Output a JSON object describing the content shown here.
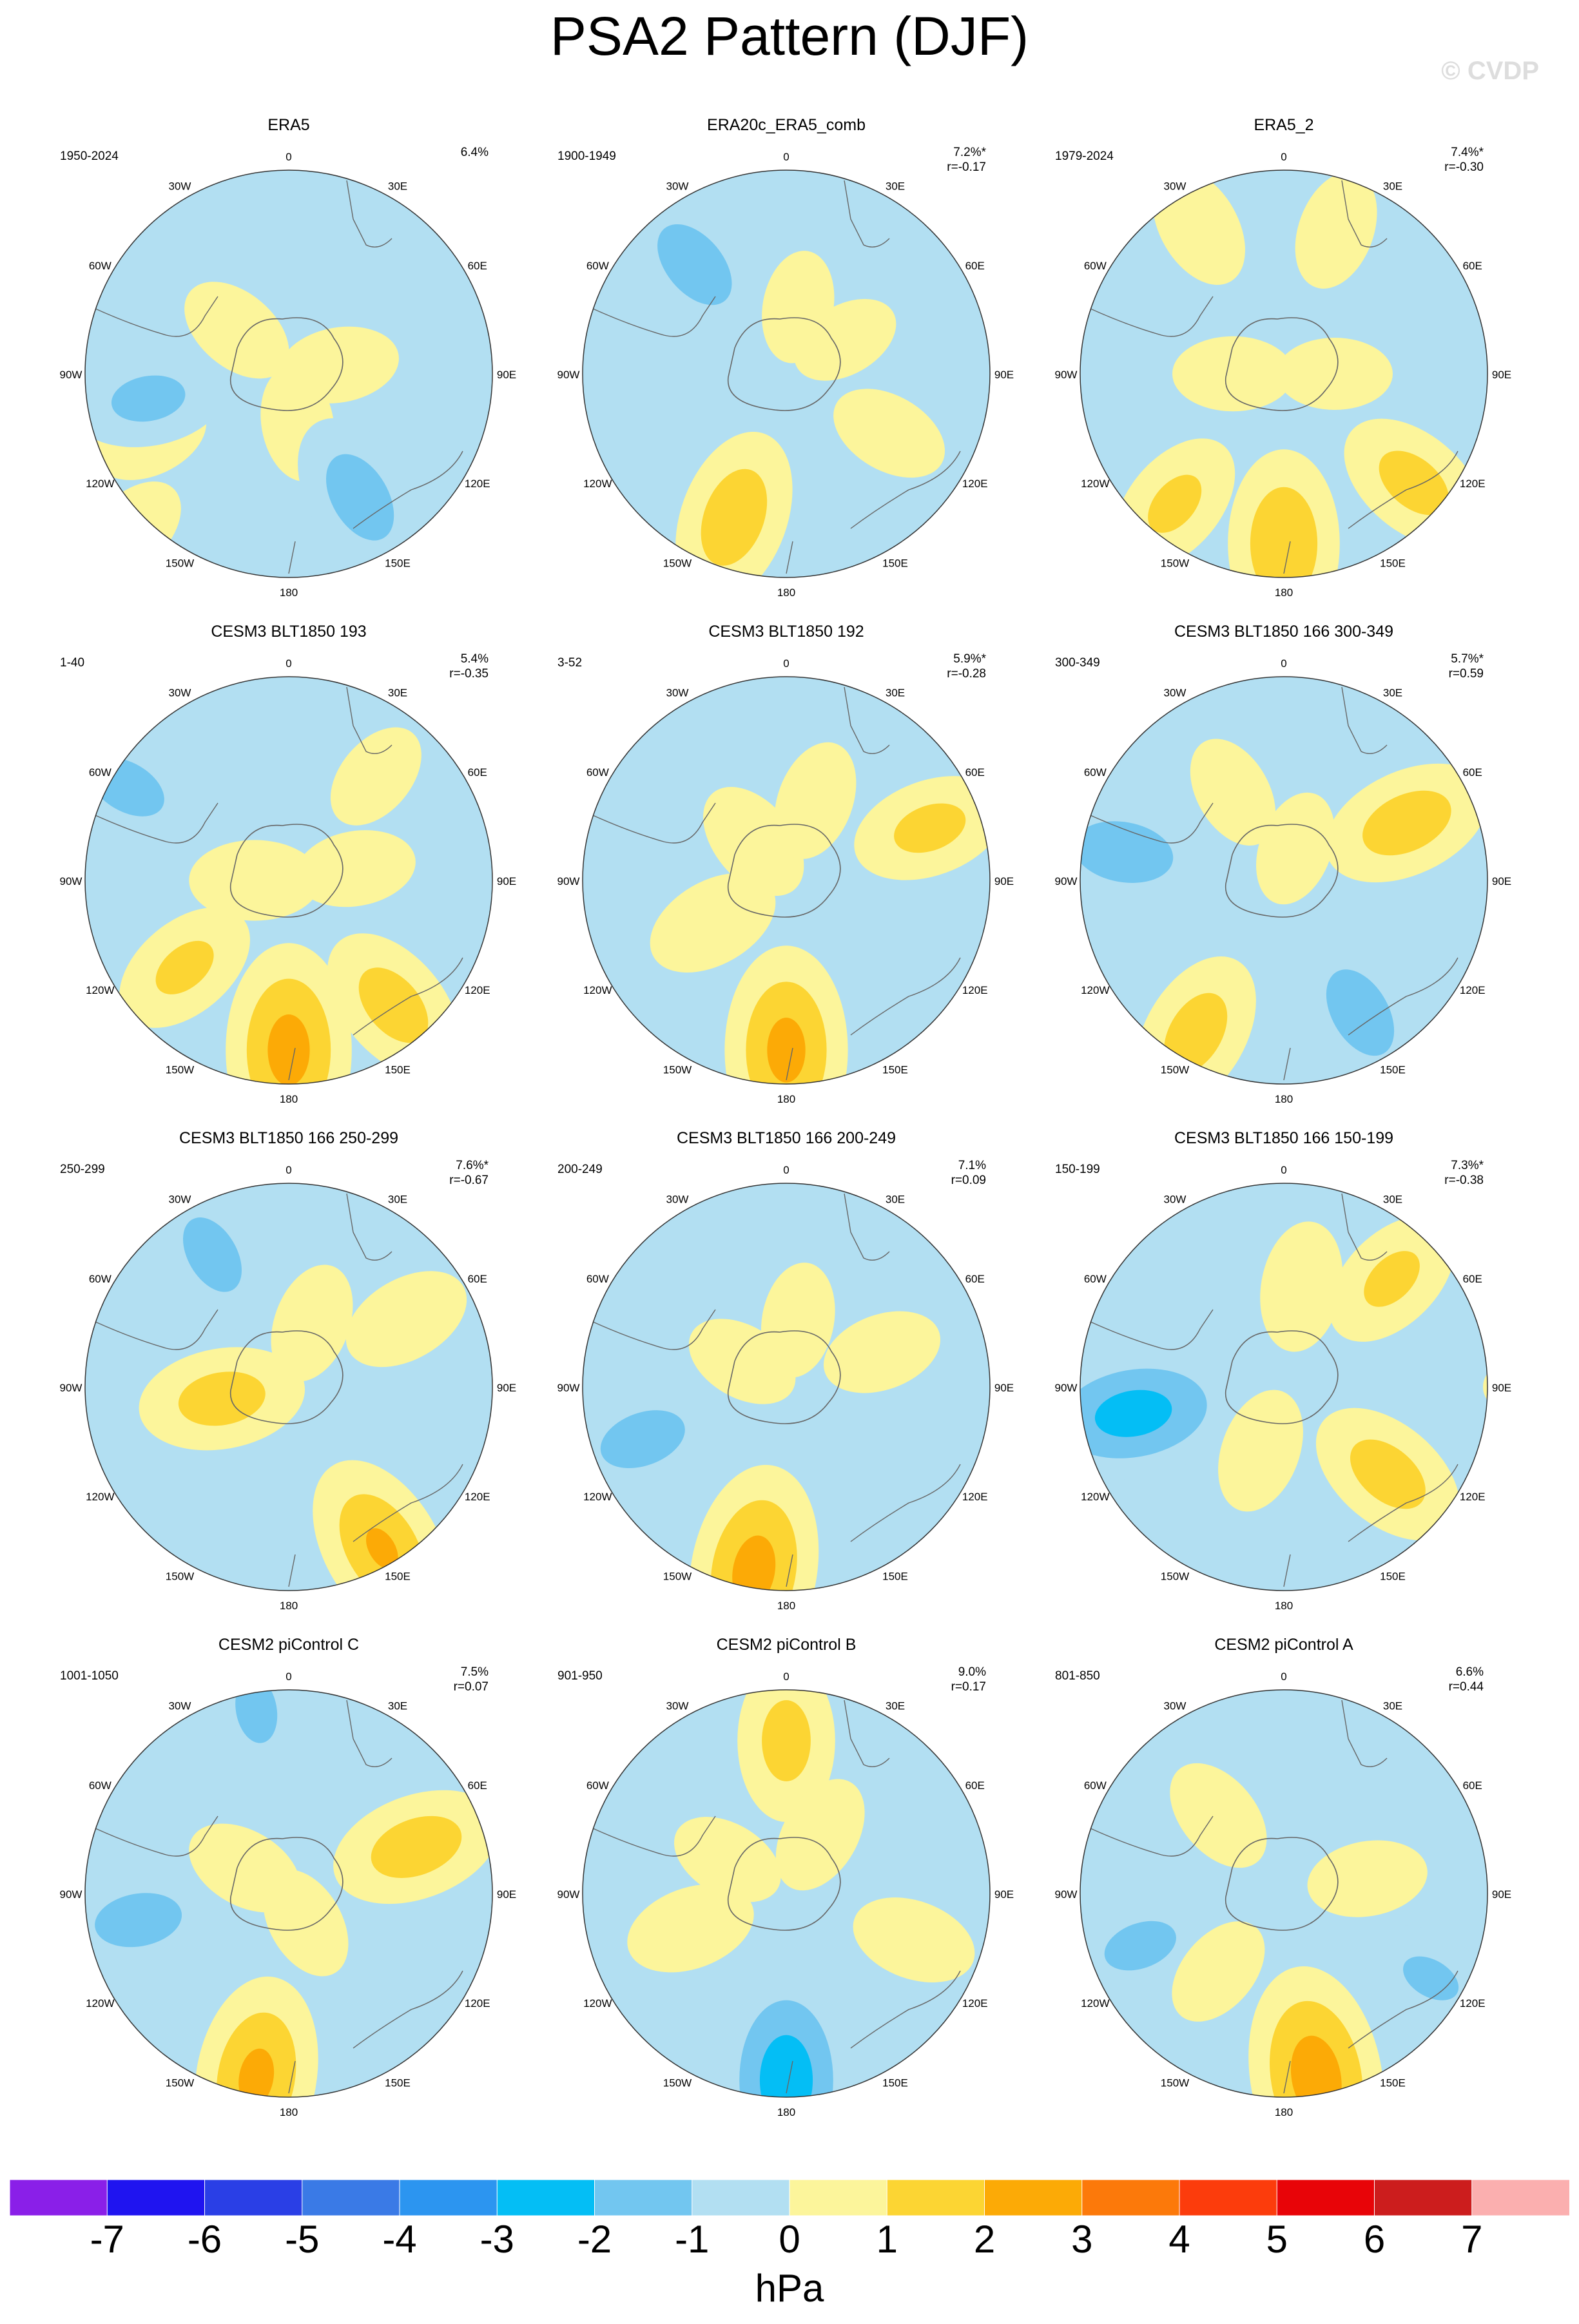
{
  "title": "PSA2 Pattern (DJF)",
  "watermark": "© CVDP",
  "units": "hPa",
  "chart_data": {
    "type": "heatmap",
    "projection": "south polar stereographic",
    "variable": "sea level pressure EOF pattern",
    "grid": true,
    "colorbar": {
      "levels": [
        -7,
        -6,
        -5,
        -4,
        -3,
        -2,
        -1,
        0,
        1,
        2,
        3,
        4,
        5,
        6,
        7
      ],
      "colors": [
        "#8a1fe8",
        "#1f14f0",
        "#2a3fe6",
        "#3a7ae6",
        "#2c95f0",
        "#04bef5",
        "#72c6f0",
        "#b2dff2",
        "#fcf59b",
        "#fcd533",
        "#fcaa06",
        "#fc790a",
        "#fc3c0c",
        "#e80408",
        "#cc1d1d",
        "#fbafaf"
      ]
    },
    "lon_labels": [
      "0",
      "30E",
      "60E",
      "90E",
      "120E",
      "150E",
      "180",
      "150W",
      "120W",
      "90W",
      "60W",
      "30W"
    ],
    "panels": [
      {
        "title": "ERA5",
        "years": "1950-2024",
        "pct": "6.4%",
        "r": "",
        "blobs": [
          {
            "lon": 310,
            "lat": 20,
            "val": 0.6
          },
          {
            "lon": 80,
            "lat": 15,
            "val": 0.6
          },
          {
            "lon": 170,
            "lat": 15,
            "val": 0.5
          },
          {
            "lon": 245,
            "lat": 45,
            "val": 0.55
          },
          {
            "lon": 150,
            "lat": 42,
            "val": -1.6
          },
          {
            "lon": 260,
            "lat": 42,
            "val": -1.3
          },
          {
            "lon": 225,
            "lat": 65,
            "val": 0.5
          }
        ]
      },
      {
        "title": "ERA20c_ERA5_comb",
        "years": "1900-1949",
        "pct": "7.2%*",
        "r": "r=-0.17",
        "blobs": [
          {
            "lon": 320,
            "lat": 42,
            "val": -1.6
          },
          {
            "lon": 200,
            "lat": 45,
            "val": 1.7
          },
          {
            "lon": 120,
            "lat": 35,
            "val": 0.6
          },
          {
            "lon": 60,
            "lat": 20,
            "val": 0.4
          },
          {
            "lon": 10,
            "lat": 20,
            "val": 0.45
          }
        ]
      },
      {
        "title": "ERA5_2",
        "years": "1979-2024",
        "pct": "7.4%*",
        "r": "r=-0.30",
        "blobs": [
          {
            "lon": 180,
            "lat": 50,
            "val": 1.9
          },
          {
            "lon": 130,
            "lat": 50,
            "val": 1.4
          },
          {
            "lon": 220,
            "lat": 50,
            "val": 1.2
          },
          {
            "lon": 330,
            "lat": 50,
            "val": 0.7
          },
          {
            "lon": 20,
            "lat": 45,
            "val": 0.6
          },
          {
            "lon": 90,
            "lat": 15,
            "val": 0.5
          },
          {
            "lon": 270,
            "lat": 15,
            "val": 0.6
          }
        ]
      },
      {
        "title": "CESM3 BLT1850 193",
        "years": "1-40",
        "pct": "5.4%",
        "r": "r=-0.35",
        "blobs": [
          {
            "lon": 180,
            "lat": 50,
            "val": 2.4
          },
          {
            "lon": 140,
            "lat": 48,
            "val": 1.5
          },
          {
            "lon": 230,
            "lat": 40,
            "val": 1.2
          },
          {
            "lon": 270,
            "lat": 10,
            "val": 0.8
          },
          {
            "lon": 80,
            "lat": 20,
            "val": 0.6
          },
          {
            "lon": 300,
            "lat": 55,
            "val": -1.4
          },
          {
            "lon": 40,
            "lat": 40,
            "val": 0.45
          }
        ]
      },
      {
        "title": "CESM3 BLT1850 192",
        "years": "3-52",
        "pct": "5.9%*",
        "r": "r=-0.28",
        "blobs": [
          {
            "lon": 180,
            "lat": 50,
            "val": 2.3
          },
          {
            "lon": 240,
            "lat": 25,
            "val": 0.9
          },
          {
            "lon": 70,
            "lat": 45,
            "val": 1.3
          },
          {
            "lon": 320,
            "lat": 15,
            "val": 0.7
          },
          {
            "lon": 20,
            "lat": 25,
            "val": 0.6
          }
        ]
      },
      {
        "title": "CESM3 BLT1850 166 300-349",
        "years": "300-349",
        "pct": "5.7%*",
        "r": "r=0.59",
        "blobs": [
          {
            "lon": 280,
            "lat": 48,
            "val": -1.7
          },
          {
            "lon": 150,
            "lat": 45,
            "val": -1.6
          },
          {
            "lon": 210,
            "lat": 52,
            "val": 1.5
          },
          {
            "lon": 65,
            "lat": 40,
            "val": 1.6
          },
          {
            "lon": 20,
            "lat": 10,
            "val": 0.5
          },
          {
            "lon": 330,
            "lat": 30,
            "val": 0.5
          }
        ]
      },
      {
        "title": "CESM3 BLT1850 166 250-299",
        "years": "250-299",
        "pct": "7.6%*",
        "r": "r=-0.67",
        "blobs": [
          {
            "lon": 330,
            "lat": 45,
            "val": -1.4
          },
          {
            "lon": 260,
            "lat": 20,
            "val": 1.5
          },
          {
            "lon": 150,
            "lat": 55,
            "val": 2.0
          },
          {
            "lon": 60,
            "lat": 40,
            "val": 0.8
          },
          {
            "lon": 20,
            "lat": 20,
            "val": 0.6
          },
          {
            "lon": 0,
            "lat": 80,
            "val": 0.5
          }
        ]
      },
      {
        "title": "CESM3 BLT1850 166 200-249",
        "years": "200-249",
        "pct": "7.1%",
        "r": "r=0.09",
        "blobs": [
          {
            "lon": 190,
            "lat": 55,
            "val": 2.4
          },
          {
            "lon": 250,
            "lat": 45,
            "val": -1.5
          },
          {
            "lon": 70,
            "lat": 30,
            "val": 0.6
          },
          {
            "lon": 300,
            "lat": 15,
            "val": 0.5
          },
          {
            "lon": 10,
            "lat": 20,
            "val": 0.5
          },
          {
            "lon": 0,
            "lat": 80,
            "val": 0.5
          }
        ]
      },
      {
        "title": "CESM3 BLT1850 166 150-199",
        "years": "150-199",
        "pct": "7.3%*",
        "r": "r=-0.38",
        "blobs": [
          {
            "lon": 260,
            "lat": 45,
            "val": -2.5
          },
          {
            "lon": 130,
            "lat": 40,
            "val": 1.5
          },
          {
            "lon": 45,
            "lat": 45,
            "val": 1.2
          },
          {
            "lon": 10,
            "lat": 30,
            "val": 0.8
          },
          {
            "lon": 200,
            "lat": 20,
            "val": 0.7
          },
          {
            "lon": 90,
            "lat": 75,
            "val": 0.4
          }
        ]
      },
      {
        "title": "CESM2 piControl C",
        "years": "1001-1050",
        "pct": "7.5%",
        "r": "r=0.07",
        "blobs": [
          {
            "lon": 190,
            "lat": 55,
            "val": 2.2
          },
          {
            "lon": 70,
            "lat": 40,
            "val": 1.6
          },
          {
            "lon": 260,
            "lat": 45,
            "val": -1.5
          },
          {
            "lon": 350,
            "lat": 55,
            "val": -1.2
          },
          {
            "lon": 300,
            "lat": 15,
            "val": 0.6
          },
          {
            "lon": 150,
            "lat": 10,
            "val": 0.5
          }
        ]
      },
      {
        "title": "CESM2 piControl B",
        "years": "901-950",
        "pct": "9.0%",
        "r": "r=0.17",
        "blobs": [
          {
            "lon": 180,
            "lat": 55,
            "val": -2.7
          },
          {
            "lon": 0,
            "lat": 45,
            "val": 1.4
          },
          {
            "lon": 250,
            "lat": 30,
            "val": 0.8
          },
          {
            "lon": 110,
            "lat": 40,
            "val": 0.7
          },
          {
            "lon": 30,
            "lat": 20,
            "val": 0.6
          },
          {
            "lon": 300,
            "lat": 20,
            "val": 0.5
          }
        ]
      },
      {
        "title": "CESM2 piControl A",
        "years": "801-850",
        "pct": "6.6%",
        "r": "r=0.44",
        "blobs": [
          {
            "lon": 170,
            "lat": 55,
            "val": 2.6
          },
          {
            "lon": 250,
            "lat": 45,
            "val": -1.3
          },
          {
            "lon": 120,
            "lat": 50,
            "val": -1.1
          },
          {
            "lon": 80,
            "lat": 25,
            "val": 0.6
          },
          {
            "lon": 320,
            "lat": 30,
            "val": 0.6
          },
          {
            "lon": 220,
            "lat": 30,
            "val": 0.5
          }
        ]
      }
    ]
  }
}
